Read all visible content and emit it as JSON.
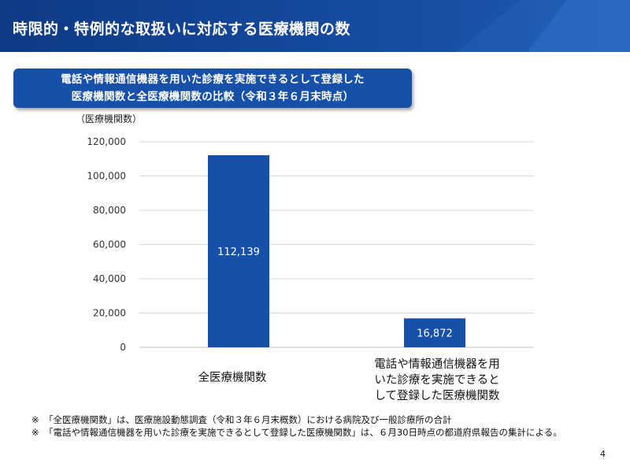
{
  "header": {
    "title": "時限的・特例的な取扱いに対応する医療機関の数"
  },
  "subtitle": {
    "line1": "電話や情報通信機器を用いた診療を実施できるとして登録した",
    "line2": "医療機関数と全医療機関数の比較（令和３年６月末時点）"
  },
  "chart_data": {
    "type": "bar",
    "ylabel": "（医療機関数）",
    "ylim": [
      0,
      120000
    ],
    "yticks": [
      "120,000",
      "100,000",
      "80,000",
      "60,000",
      "40,000",
      "20,000",
      "0"
    ],
    "ytick_values": [
      120000,
      100000,
      80000,
      60000,
      40000,
      20000,
      0
    ],
    "categories": [
      "全医療機関数",
      "電話や情報通信機器を用いた診療を実施できるとして登録した医療機関数"
    ],
    "category_lines": [
      [
        "全医療機関数"
      ],
      [
        "電話や情報通信機器を用",
        "いた診療を実施できると",
        "して登録した医療機関数"
      ]
    ],
    "values": [
      112139,
      16872
    ],
    "value_labels": [
      "112,139",
      "16,872"
    ],
    "grid": true,
    "bar_color": "#1650a8",
    "label_color": "#ffffff"
  },
  "notes": [
    {
      "mark": "※",
      "text": "「全医療機関数」は、医療施設動態調査（令和３年６月末概数）における病院及び一般診療所の合計"
    },
    {
      "mark": "※",
      "text": "「電話や情報通信機器を用いた診療を実施できるとして登録した医療機関数」は、６月30日時点の都道府県報告の集計による。"
    }
  ],
  "page_number": "4",
  "colors": {
    "header_bg": "#154a9e",
    "subtitle_bg": "#1650a8",
    "bar": "#1650a8",
    "grid": "#d9d9d9"
  }
}
